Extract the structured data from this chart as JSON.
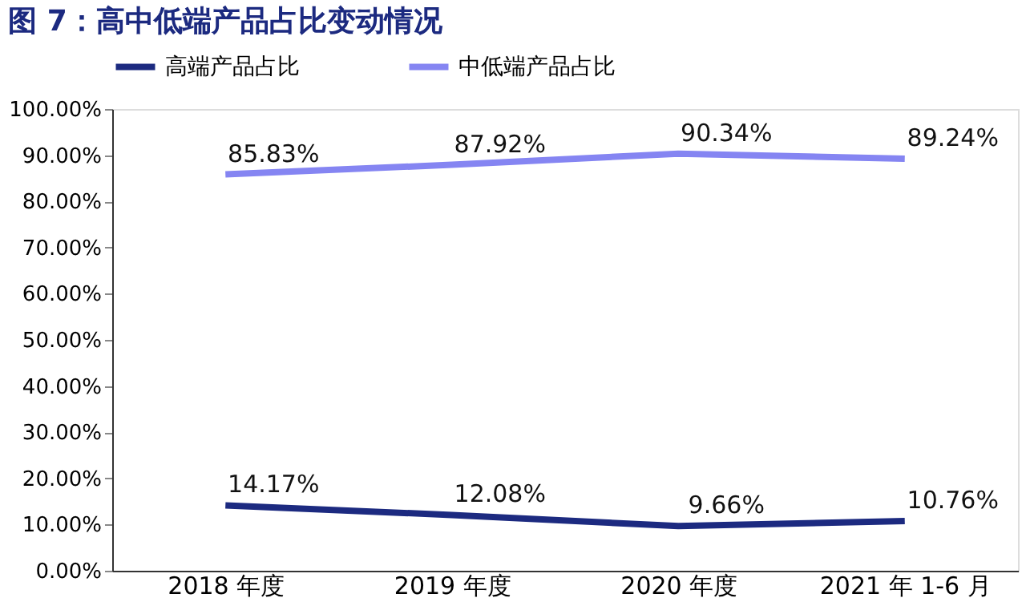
{
  "chart_data": {
    "type": "line",
    "title": "图 7：高中低端产品占比变动情况",
    "categories": [
      "2018 年度",
      "2019 年度",
      "2020 年度",
      "2021 年 1-6 月"
    ],
    "series": [
      {
        "name": "高端产品占比",
        "color": "#1c2a80",
        "values": [
          14.17,
          12.08,
          9.66,
          10.76
        ],
        "value_labels": [
          "14.17%",
          "12.08%",
          "9.66%",
          "10.76%"
        ]
      },
      {
        "name": "中低端产品占比",
        "color": "#8585f2",
        "values": [
          85.83,
          87.92,
          90.34,
          89.24
        ],
        "value_labels": [
          "85.83%",
          "87.92%",
          "90.34%",
          "89.24%"
        ]
      }
    ],
    "ylim": [
      0,
      100
    ],
    "yticks": [
      {
        "value": 0,
        "label": "0.00%"
      },
      {
        "value": 10,
        "label": "10.00%"
      },
      {
        "value": 20,
        "label": "20.00%"
      },
      {
        "value": 30,
        "label": "30.00%"
      },
      {
        "value": 40,
        "label": "40.00%"
      },
      {
        "value": 50,
        "label": "50.00%"
      },
      {
        "value": 60,
        "label": "60.00%"
      },
      {
        "value": 70,
        "label": "70.00%"
      },
      {
        "value": 80,
        "label": "80.00%"
      },
      {
        "value": 90,
        "label": "90.00%"
      },
      {
        "value": 100,
        "label": "100.00%"
      }
    ],
    "grid": false,
    "legend": "top",
    "marker": "none",
    "line_style": "solid"
  }
}
